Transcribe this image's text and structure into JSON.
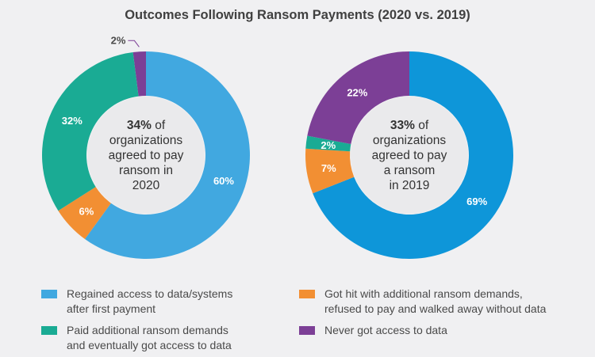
{
  "colors": {
    "regained": "#41a8e0",
    "regained_2019": "#0e96d9",
    "additional": "#f28f33",
    "paid": "#1aab94",
    "never": "#7c3f96",
    "center": "#eaeaec",
    "background": "#f0f0f2"
  },
  "chart_data": {
    "type": "pie",
    "title": "Outcomes Following Ransom Payments (2020 vs. 2019)",
    "legend": [
      {
        "key": "regained",
        "label_lines": [
          "Regained access to data/systems",
          "after first payment"
        ]
      },
      {
        "key": "additional",
        "label_lines": [
          "Got hit with additional ransom demands,",
          "refused to pay and walked away without data"
        ]
      },
      {
        "key": "paid",
        "label_lines": [
          "Paid additional ransom demands",
          "and eventually got access to data"
        ]
      },
      {
        "key": "never",
        "label_lines": [
          "Never got access to data"
        ]
      }
    ],
    "charts": [
      {
        "year": "2020",
        "center_pct": "34%",
        "center_lines": [
          "of",
          "organizations",
          "agreed to pay",
          "ransom in",
          "2020"
        ],
        "slices": [
          {
            "key": "regained",
            "value": 60,
            "label": "60%"
          },
          {
            "key": "additional",
            "value": 6,
            "label": "6%"
          },
          {
            "key": "paid",
            "value": 32,
            "label": "32%"
          },
          {
            "key": "never",
            "value": 2,
            "label": "2%"
          }
        ]
      },
      {
        "year": "2019",
        "center_pct": "33%",
        "center_lines": [
          "of",
          "organizations",
          "agreed to pay",
          "a ransom",
          "in 2019"
        ],
        "slices": [
          {
            "key": "regained",
            "value": 69,
            "label": "69%"
          },
          {
            "key": "additional",
            "value": 7,
            "label": "7%"
          },
          {
            "key": "paid",
            "value": 2,
            "label": "2%"
          },
          {
            "key": "never",
            "value": 22,
            "label": "22%"
          }
        ]
      }
    ]
  }
}
